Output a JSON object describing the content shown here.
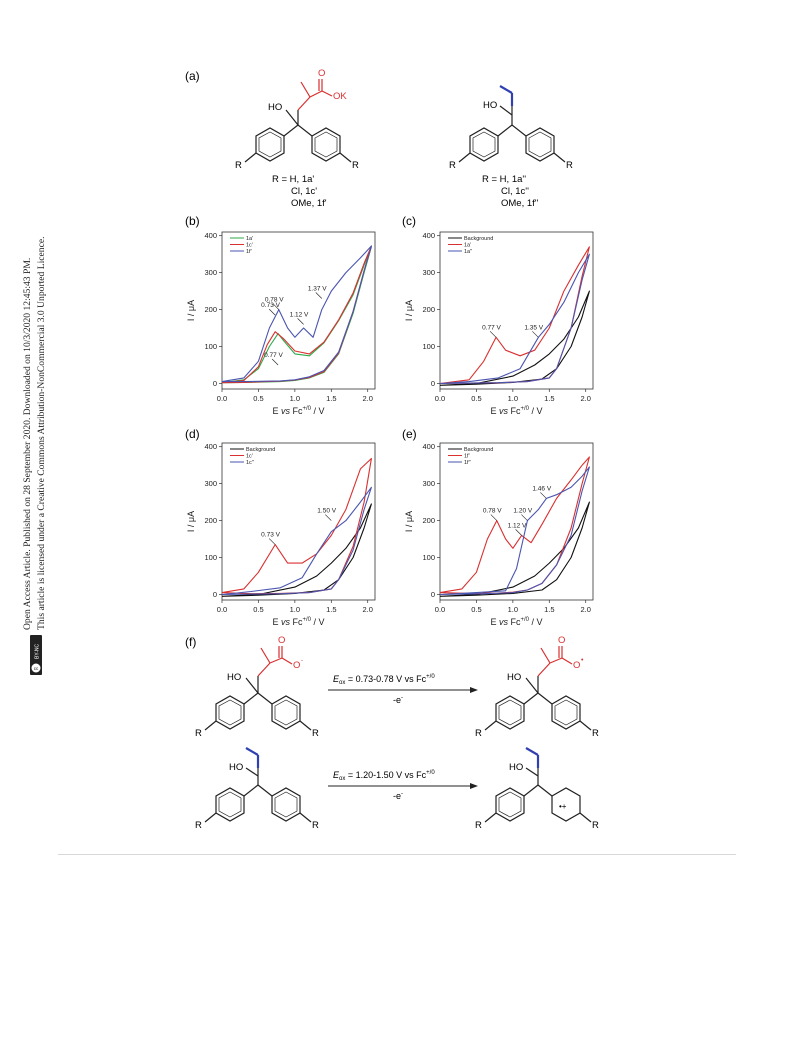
{
  "sidebar": {
    "line1": "Open Access Article. Published on 28 September 2020. Downloaded on 10/3/2020 12:45:43 PM.",
    "line2": "This article is licensed under a Creative Commons Attribution-NonCommercial 3.0 Unported Licence.",
    "badge_cc": "cc",
    "badge_text": "BY-NC"
  },
  "figure": {
    "panel_labels": [
      "(a)",
      "(b)",
      "(c)",
      "(d)",
      "(e)",
      "(f)"
    ],
    "structures": {
      "left_atoms": {
        "O": "O",
        "OK": "OK",
        "HO": "HO",
        "R1": "R",
        "R2": "R"
      },
      "right_atoms": {
        "HO": "HO",
        "R1": "R",
        "R2": "R"
      },
      "left_labels": [
        "R = H, 1a'",
        "Cl, 1c'",
        "OMe, 1f'"
      ],
      "right_labels": [
        "R = H, 1a''",
        "Cl, 1c''",
        "OMe, 1f''"
      ]
    },
    "scheme_f": {
      "reaction1_label": "E",
      "reaction1_sub": "ox",
      "reaction1_rest": " = 0.73-0.78 V vs Fc",
      "reaction1_sup": "+/0",
      "reaction1_below": "-e",
      "reaction1_below_sup": "-",
      "reaction2_label": "E",
      "reaction2_sub": "ox",
      "reaction2_rest": " = 1.20-1.50 V vs Fc",
      "reaction2_sup": "+/0",
      "reaction2_below": "-e",
      "reaction2_below_sup": "-",
      "atoms": {
        "O": "O",
        "Ominus": "O",
        "minus": "-",
        "Odot": "O",
        "dot": "•",
        "HO": "HO",
        "R": "R",
        "radcat": "•+"
      }
    }
  },
  "chart_data": [
    {
      "panel": "(b)",
      "type": "line",
      "xlabel": "E vs Fc+/0 / V",
      "ylabel": "I / μA",
      "xlim": [
        0,
        2.1
      ],
      "ylim": [
        -15,
        410
      ],
      "xticks": [
        "0.0",
        "0.5",
        "1.0",
        "1.5",
        "2.0"
      ],
      "yticks": [
        "0",
        "100",
        "200",
        "300",
        "400"
      ],
      "legend_position": "top-left",
      "annotations": [
        {
          "text": "0.78 V",
          "x": 0.78,
          "y": 200
        },
        {
          "text": "0.73 V",
          "x": 0.73,
          "y": 185
        },
        {
          "text": "1.12 V",
          "x": 1.12,
          "y": 160
        },
        {
          "text": "1.37 V",
          "x": 1.37,
          "y": 230
        },
        {
          "text": "0.77 V",
          "x": 0.77,
          "y": 50
        }
      ],
      "series": [
        {
          "name": "1a'",
          "color": "#2eaa4a",
          "x": [
            0,
            0.3,
            0.5,
            0.65,
            0.77,
            0.85,
            1.0,
            1.2,
            1.4,
            1.6,
            1.8,
            1.95,
            2.05,
            1.95,
            1.8,
            1.6,
            1.4,
            1.2,
            1.0,
            0.8,
            0.6,
            0.3,
            0
          ],
          "y": [
            2,
            10,
            40,
            100,
            135,
            115,
            80,
            75,
            110,
            170,
            240,
            320,
            370,
            300,
            190,
            80,
            30,
            15,
            8,
            5,
            4,
            3,
            2
          ]
        },
        {
          "name": "1c'",
          "color": "#d93030",
          "x": [
            0,
            0.3,
            0.5,
            0.62,
            0.73,
            0.85,
            1.0,
            1.2,
            1.4,
            1.6,
            1.8,
            1.95,
            2.05,
            1.95,
            1.8,
            1.6,
            1.4,
            1.2,
            1.0,
            0.8,
            0.6,
            0.3,
            0
          ],
          "y": [
            2,
            8,
            45,
            105,
            140,
            120,
            88,
            80,
            112,
            172,
            245,
            325,
            372,
            305,
            195,
            82,
            32,
            16,
            9,
            6,
            5,
            3,
            2
          ]
        },
        {
          "name": "1f'",
          "color": "#4a55b0",
          "x": [
            0,
            0.3,
            0.5,
            0.65,
            0.78,
            0.9,
            1.0,
            1.12,
            1.25,
            1.37,
            1.5,
            1.7,
            1.9,
            2.05,
            1.95,
            1.8,
            1.6,
            1.4,
            1.2,
            1.0,
            0.8,
            0.6,
            0.3,
            0
          ],
          "y": [
            5,
            15,
            60,
            150,
            200,
            150,
            125,
            150,
            125,
            200,
            250,
            300,
            340,
            372,
            305,
            195,
            85,
            35,
            18,
            10,
            7,
            6,
            5,
            5
          ]
        }
      ]
    },
    {
      "panel": "(c)",
      "type": "line",
      "xlabel": "E vs Fc+/0 / V",
      "ylabel": "I / μA",
      "xlim": [
        0,
        2.1
      ],
      "ylim": [
        -15,
        410
      ],
      "xticks": [
        "0.0",
        "0.5",
        "1.0",
        "1.5",
        "2.0"
      ],
      "yticks": [
        "0",
        "100",
        "200",
        "300",
        "400"
      ],
      "legend_position": "top-left",
      "annotations": [
        {
          "text": "0.77 V",
          "x": 0.77,
          "y": 125
        },
        {
          "text": "1.35 V",
          "x": 1.35,
          "y": 125
        }
      ],
      "series": [
        {
          "name": "Background",
          "color": "#111111",
          "x": [
            0,
            0.5,
            1.0,
            1.3,
            1.5,
            1.7,
            1.9,
            2.05,
            1.95,
            1.8,
            1.6,
            1.4,
            1.0,
            0.5,
            0
          ],
          "y": [
            -5,
            0,
            20,
            50,
            80,
            120,
            180,
            250,
            180,
            100,
            40,
            12,
            3,
            -2,
            -5
          ]
        },
        {
          "name": "1a'",
          "color": "#d93030",
          "x": [
            0,
            0.4,
            0.6,
            0.77,
            0.9,
            1.1,
            1.3,
            1.5,
            1.7,
            1.9,
            2.05,
            1.95,
            1.8,
            1.6,
            1.5,
            1.2,
            0.8,
            0.4,
            0
          ],
          "y": [
            0,
            10,
            60,
            125,
            90,
            75,
            90,
            150,
            250,
            320,
            370,
            290,
            150,
            40,
            15,
            5,
            2,
            1,
            0
          ]
        },
        {
          "name": "1a''",
          "color": "#4a55b0",
          "x": [
            0,
            0.4,
            0.8,
            1.1,
            1.35,
            1.5,
            1.7,
            1.9,
            2.05,
            1.95,
            1.8,
            1.6,
            1.5,
            1.2,
            0.8,
            0.4,
            0
          ],
          "y": [
            0,
            5,
            15,
            40,
            125,
            160,
            220,
            300,
            350,
            280,
            150,
            40,
            15,
            5,
            2,
            1,
            0
          ]
        }
      ]
    },
    {
      "panel": "(d)",
      "type": "line",
      "xlabel": "E vs Fc+/0 / V",
      "ylabel": "I / μA",
      "xlim": [
        0,
        2.1
      ],
      "ylim": [
        -15,
        410
      ],
      "xticks": [
        "0.0",
        "0.5",
        "1.0",
        "1.5",
        "2.0"
      ],
      "yticks": [
        "0",
        "100",
        "200",
        "300",
        "400"
      ],
      "legend_position": "top-left",
      "annotations": [
        {
          "text": "0.73 V",
          "x": 0.73,
          "y": 135
        },
        {
          "text": "1.50 V",
          "x": 1.5,
          "y": 200
        }
      ],
      "series": [
        {
          "name": "Background",
          "color": "#111111",
          "x": [
            0,
            0.5,
            1.0,
            1.3,
            1.5,
            1.7,
            1.9,
            2.05,
            1.95,
            1.8,
            1.6,
            1.4,
            1.0,
            0.5,
            0
          ],
          "y": [
            -5,
            0,
            20,
            50,
            85,
            125,
            180,
            245,
            180,
            100,
            40,
            12,
            3,
            -2,
            -5
          ]
        },
        {
          "name": "1c'",
          "color": "#d93030",
          "x": [
            0,
            0.3,
            0.5,
            0.73,
            0.9,
            1.1,
            1.3,
            1.5,
            1.7,
            1.9,
            2.05,
            1.95,
            1.8,
            1.6,
            1.5,
            1.2,
            0.8,
            0.4,
            0
          ],
          "y": [
            5,
            15,
            60,
            135,
            85,
            85,
            110,
            160,
            230,
            340,
            368,
            250,
            130,
            40,
            15,
            5,
            3,
            2,
            5
          ]
        },
        {
          "name": "1c''",
          "color": "#4a55b0",
          "x": [
            0,
            0.4,
            0.8,
            1.1,
            1.3,
            1.5,
            1.7,
            1.9,
            2.05,
            1.95,
            1.8,
            1.6,
            1.5,
            1.2,
            0.8,
            0.4,
            0
          ],
          "y": [
            0,
            8,
            18,
            45,
            110,
            170,
            200,
            250,
            290,
            230,
            120,
            40,
            15,
            5,
            2,
            1,
            0
          ]
        }
      ]
    },
    {
      "panel": "(e)",
      "type": "line",
      "xlabel": "E vs Fc+/0 / V",
      "ylabel": "I / μA",
      "xlim": [
        0,
        2.1
      ],
      "ylim": [
        -15,
        410
      ],
      "xticks": [
        "0.0",
        "0.5",
        "1.0",
        "1.5",
        "2.0"
      ],
      "yticks": [
        "0",
        "100",
        "200",
        "300",
        "400"
      ],
      "legend_position": "top-left",
      "annotations": [
        {
          "text": "0.78 V",
          "x": 0.78,
          "y": 200
        },
        {
          "text": "1.12 V",
          "x": 1.12,
          "y": 160
        },
        {
          "text": "1.20 V",
          "x": 1.2,
          "y": 200
        },
        {
          "text": "1.46 V",
          "x": 1.46,
          "y": 260
        }
      ],
      "series": [
        {
          "name": "Background",
          "color": "#111111",
          "x": [
            0,
            0.5,
            1.0,
            1.3,
            1.5,
            1.7,
            1.9,
            2.05,
            1.95,
            1.8,
            1.6,
            1.4,
            1.0,
            0.5,
            0
          ],
          "y": [
            -5,
            0,
            20,
            50,
            85,
            125,
            180,
            250,
            180,
            100,
            40,
            12,
            3,
            -2,
            -5
          ]
        },
        {
          "name": "1f'",
          "color": "#d93030",
          "x": [
            0,
            0.3,
            0.5,
            0.65,
            0.78,
            0.9,
            1.0,
            1.12,
            1.25,
            1.4,
            1.6,
            1.8,
            1.95,
            2.05,
            1.95,
            1.8,
            1.6,
            1.4,
            1.2,
            1.0,
            0.8,
            0.4,
            0
          ],
          "y": [
            5,
            15,
            60,
            150,
            200,
            150,
            125,
            160,
            140,
            190,
            260,
            310,
            350,
            372,
            300,
            180,
            80,
            30,
            12,
            6,
            4,
            3,
            5
          ]
        },
        {
          "name": "1f''",
          "color": "#4a55b0",
          "x": [
            0,
            0.5,
            0.9,
            1.05,
            1.2,
            1.35,
            1.46,
            1.6,
            1.8,
            1.95,
            2.05,
            1.95,
            1.8,
            1.6,
            1.4,
            1.2,
            1.0,
            0.6,
            0
          ],
          "y": [
            0,
            5,
            10,
            70,
            200,
            230,
            260,
            270,
            290,
            320,
            345,
            280,
            160,
            80,
            30,
            12,
            5,
            2,
            0
          ]
        }
      ]
    }
  ]
}
